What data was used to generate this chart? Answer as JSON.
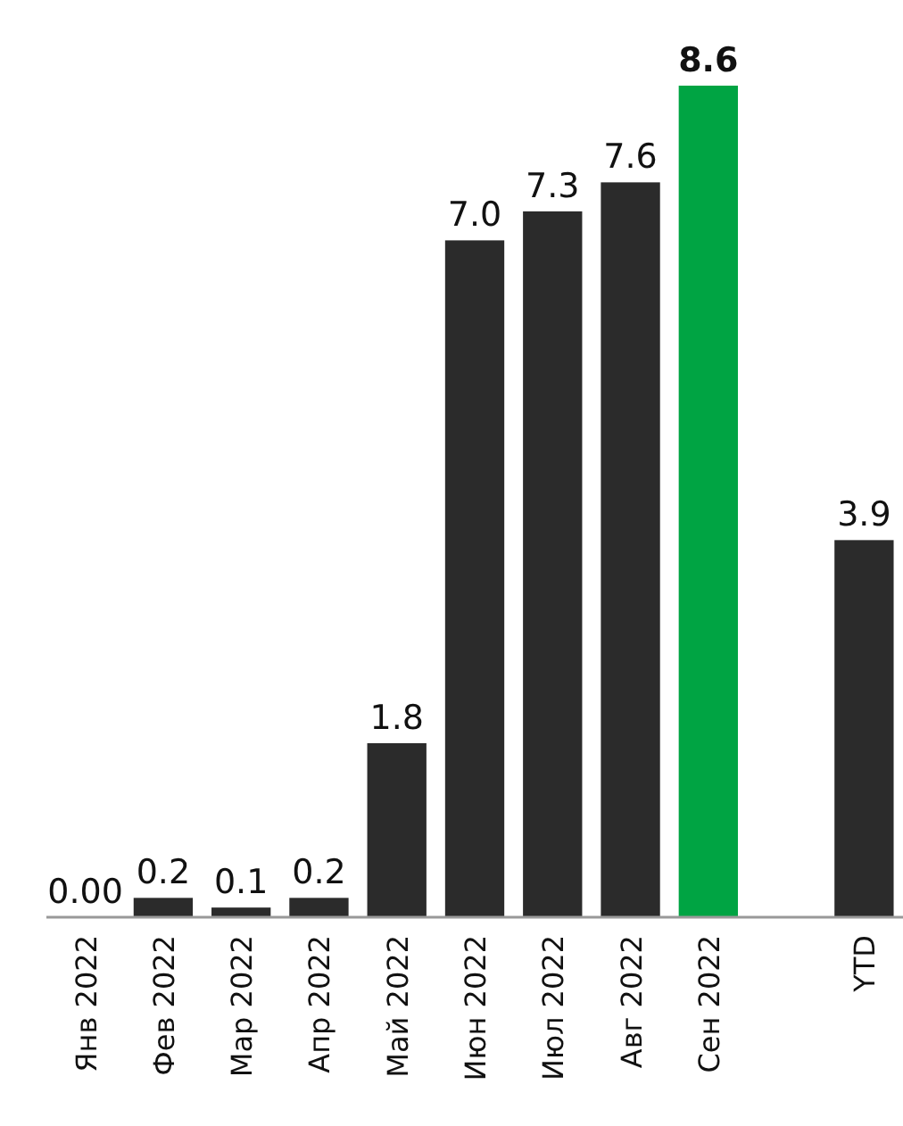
{
  "chart_data": {
    "type": "bar",
    "categories": [
      "Янв 2022",
      "Фев 2022",
      "Мар 2022",
      "Апр 2022",
      "Май 2022",
      "Июн 2022",
      "Июл 2022",
      "Авг 2022",
      "Сен 2022",
      null,
      "YTD"
    ],
    "values": [
      0,
      0.2,
      0.1,
      0.2,
      1.8,
      7.0,
      7.3,
      7.6,
      8.6,
      null,
      3.9
    ],
    "colors": [
      "#2b2b2b",
      "#2b2b2b",
      "#2b2b2b",
      "#2b2b2b",
      "#2b2b2b",
      "#2b2b2b",
      "#2b2b2b",
      "#2b2b2b",
      "#00a443",
      null,
      "#2b2b2b"
    ],
    "value_labels": [
      "0.00",
      "0.2",
      "0.1",
      "0.2",
      "1.8",
      "7.0",
      "7.3",
      "7.6",
      "8.6",
      null,
      "3.9"
    ]
  }
}
